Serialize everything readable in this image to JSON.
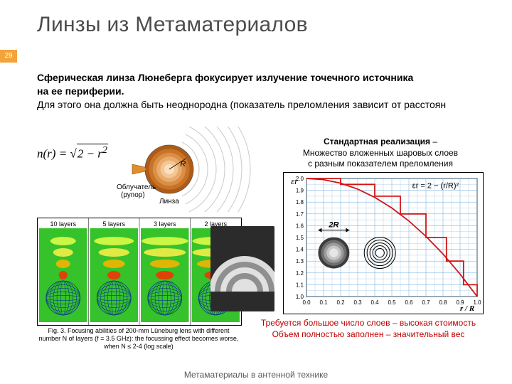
{
  "title": "Линзы из Метаматериалов",
  "page_number": "29",
  "intro": {
    "line1_bold": "Сферическая линза Люнеберга фокусирует излучение точечного источника",
    "line2_bold": "на ее периферии.",
    "line3": "Для этого она должна быть неоднородна (показатель преломления зависит от расстоян"
  },
  "formula": {
    "lhs": "n(r) = ",
    "radicand": "2 − r",
    "sup": "2"
  },
  "lens_diagram": {
    "irradiator_label": "Облучатель",
    "irradiator_sub": "(рупор)",
    "lens_label": "Линза",
    "radius_label": "R",
    "horn_color": "#e38c2a",
    "lens_colors": [
      "#af5b15",
      "#c77429",
      "#db8f46",
      "#e9ab6b",
      "#f3c694",
      "#fbe0bf"
    ],
    "wave_color": "#c9c9c9"
  },
  "standard_realization": {
    "bold": "Стандартная реализация",
    "dash": " – ",
    "line1": "Множество вложенных шаровых слоев",
    "line2": "с разным показателем преломления"
  },
  "chart": {
    "type": "line-step",
    "x_label": "r / R",
    "y_label": "εr",
    "xlim": [
      0.0,
      1.0
    ],
    "ylim": [
      1.0,
      2.0
    ],
    "xtick_step": 0.1,
    "ytick_step": 0.1,
    "minor_grid": true,
    "grid_color": "#6aa7d8",
    "curve_color": "#d01414",
    "curve_points": [
      [
        0.0,
        2.0
      ],
      [
        0.1,
        1.99
      ],
      [
        0.2,
        1.96
      ],
      [
        0.3,
        1.91
      ],
      [
        0.4,
        1.84
      ],
      [
        0.5,
        1.75
      ],
      [
        0.6,
        1.64
      ],
      [
        0.7,
        1.51
      ],
      [
        0.8,
        1.36
      ],
      [
        0.9,
        1.19
      ],
      [
        1.0,
        1.0
      ]
    ],
    "step_points": [
      [
        0.0,
        2.0
      ],
      [
        0.2,
        2.0
      ],
      [
        0.2,
        1.95
      ],
      [
        0.4,
        1.95
      ],
      [
        0.4,
        1.85
      ],
      [
        0.55,
        1.85
      ],
      [
        0.55,
        1.7
      ],
      [
        0.7,
        1.7
      ],
      [
        0.7,
        1.5
      ],
      [
        0.82,
        1.5
      ],
      [
        0.82,
        1.3
      ],
      [
        0.92,
        1.3
      ],
      [
        0.92,
        1.1
      ],
      [
        1.0,
        1.1
      ],
      [
        1.0,
        1.0
      ]
    ],
    "equation_label": "εr = 2 − (r/R)²",
    "twoR_label": "2R",
    "ball_solid_colors": [
      "#3c3c3c",
      "#6f6f6f",
      "#9c9c9c",
      "#c6c6c6",
      "#e6e6e6"
    ],
    "ball_ring_count": 5,
    "background_color": "#ffffff",
    "tick_fontsize": 8,
    "label_fontsize": 11
  },
  "layers_panel": {
    "headers": [
      "10 layers",
      "5 layers",
      "3 layers",
      "2 layers"
    ],
    "bg_color": "#36c22a",
    "wave_colors": [
      "#ff2a00",
      "#ffb300",
      "#fff04a",
      "#e6ff4a"
    ],
    "caption": "Fig. 3. Focusing abilities of 200-mm Lüneburg lens with different number N of layers (f = 3.5 GHz): the focussing effect becomes worse, when N ≤ 2-4 (log scale)"
  },
  "photo": {
    "rings": 5,
    "ring_color_light": "#e6e6e6",
    "ring_color_dark": "#8a8a8a"
  },
  "cons": {
    "line1": "Требуется большое число слоев – высокая стоимость",
    "line2": "Объем полностью заполнен – значительный вес"
  },
  "footer": "Метаматериалы в антенной технике"
}
